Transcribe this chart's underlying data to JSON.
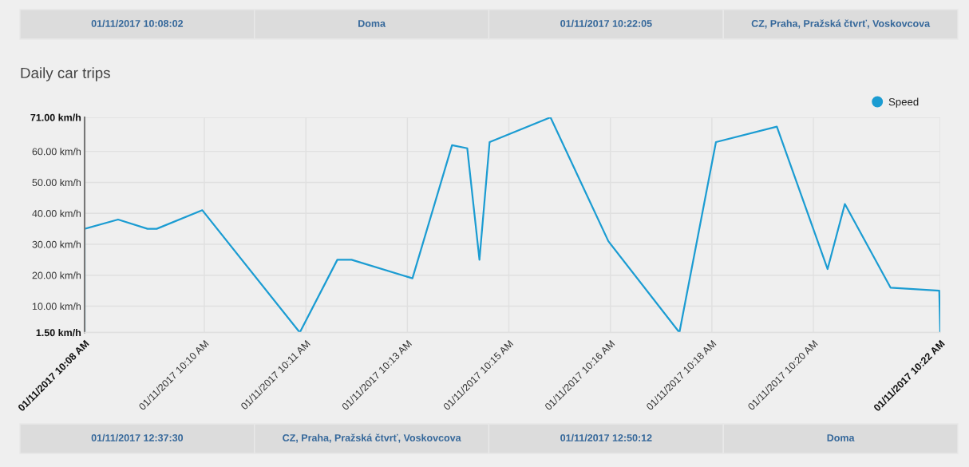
{
  "chart_data": {
    "type": "line",
    "title": "Daily car trips",
    "x": [
      "2017-01-11T10:08:02",
      "2017-01-11T10:08:02",
      "2017-01-11T10:08:35",
      "2017-01-11T10:09:04",
      "2017-01-11T10:09:13",
      "2017-01-11T10:09:58",
      "2017-01-11T10:11:34",
      "2017-01-11T10:12:11",
      "2017-01-11T10:12:25",
      "2017-01-11T10:13:25",
      "2017-01-11T10:14:04",
      "2017-01-11T10:14:19",
      "2017-01-11T10:14:31",
      "2017-01-11T10:14:41",
      "2017-01-11T10:15:41",
      "2017-01-11T10:16:38",
      "2017-01-11T10:17:48",
      "2017-01-11T10:18:24",
      "2017-01-11T10:19:24",
      "2017-01-11T10:20:14",
      "2017-01-11T10:20:31",
      "2017-01-11T10:21:16",
      "2017-01-11T10:22:04",
      "2017-01-11T10:22:05"
    ],
    "series": [
      {
        "name": "Speed",
        "color": "#1b9cd2",
        "values": [
          1.5,
          35,
          38,
          35,
          35,
          41,
          1.5,
          25,
          25,
          19,
          62,
          61,
          25,
          63,
          71,
          31,
          1.5,
          63,
          68,
          22,
          43,
          16,
          15,
          1.5
        ]
      }
    ],
    "xlim": [
      "2017-01-11T10:08:02",
      "2017-01-11T10:22:05"
    ],
    "xticks": [
      {
        "value": "2017-01-11T10:08:02",
        "label": "01/11/2017 10:08 AM"
      },
      {
        "value": "2017-01-11T10:10:00",
        "label": "01/11/2017 10:10 AM"
      },
      {
        "value": "2017-01-11T10:11:40",
        "label": "01/11/2017 10:11 AM"
      },
      {
        "value": "2017-01-11T10:13:20",
        "label": "01/11/2017 10:13 AM"
      },
      {
        "value": "2017-01-11T10:15:00",
        "label": "01/11/2017 10:15 AM"
      },
      {
        "value": "2017-01-11T10:16:40",
        "label": "01/11/2017 10:16 AM"
      },
      {
        "value": "2017-01-11T10:18:20",
        "label": "01/11/2017 10:18 AM"
      },
      {
        "value": "2017-01-11T10:20:00",
        "label": "01/11/2017 10:20 AM"
      },
      {
        "value": "2017-01-11T10:22:05",
        "label": "01/11/2017 10:22 AM"
      }
    ],
    "ylim": [
      1.5,
      71
    ],
    "yticks": [
      {
        "value": 1.5,
        "label": "1.50 km/h"
      },
      {
        "value": 10,
        "label": "10.00 km/h"
      },
      {
        "value": 20,
        "label": "20.00 km/h"
      },
      {
        "value": 30,
        "label": "30.00 km/h"
      },
      {
        "value": 40,
        "label": "40.00 km/h"
      },
      {
        "value": 50,
        "label": "50.00 km/h"
      },
      {
        "value": 60,
        "label": "60.00 km/h"
      },
      {
        "value": 71,
        "label": "71.00 km/h"
      }
    ],
    "grid": true,
    "legend": "top right",
    "line_style": "solid",
    "annotations": [
      "01/11/2017 10:08:02",
      "Doma",
      "01/11/2017 10:22:05",
      "CZ, Praha, Pražská čtvrť, Voskovcova",
      "01/11/2017 12:37:30",
      "CZ, Praha, Pražská čtvrť, Voskovcova",
      "01/11/2017 12:50:12",
      "Doma"
    ]
  }
}
